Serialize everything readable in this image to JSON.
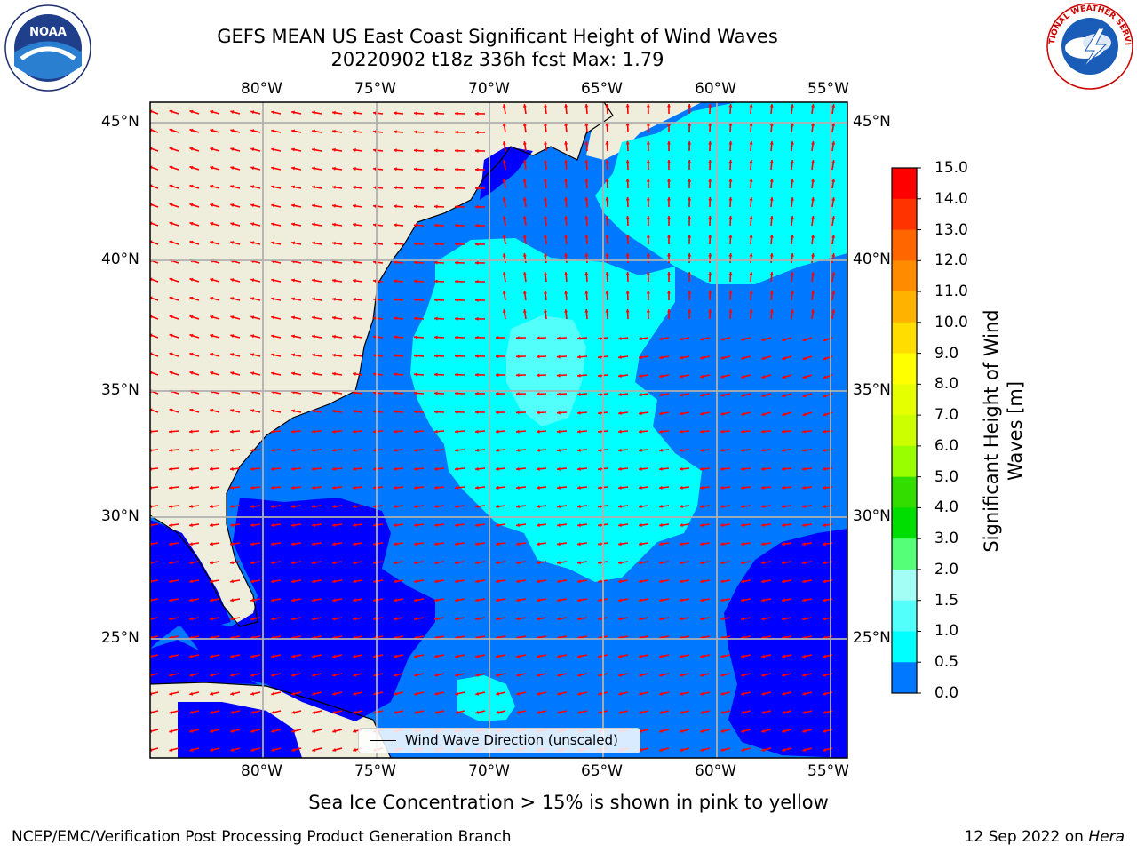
{
  "header": {
    "title_line1": "GEFS MEAN US East Coast Significant Height of Wind Waves",
    "title_line2": "20220902 t18z 336h fcst   Max: 1.79"
  },
  "logos": {
    "left": {
      "name": "noaa-logo",
      "text": "NOAA"
    },
    "right": {
      "name": "nws-logo",
      "text": "NATIONAL WEATHER SERVICE"
    }
  },
  "map": {
    "lon_labels": [
      "80°W",
      "75°W",
      "70°W",
      "65°W",
      "60°W",
      "55°W"
    ],
    "lat_labels": [
      "45°N",
      "40°N",
      "35°N",
      "30°N",
      "25°N"
    ],
    "colors": {
      "land": "#efeedc",
      "ocean_0": "#0000ff",
      "ocean_05": "#0078ff",
      "ocean_1": "#00ffff",
      "ocean_15": "#52fffb",
      "ocean_2": "#a3fff6",
      "arrow": "#ff0000",
      "grid": "#b0b0b0"
    },
    "legend": {
      "label": "Wind Wave Direction (unscaled)"
    }
  },
  "colorbar": {
    "title_line1": "Significant Height of Wind",
    "title_line2": "Waves [m]",
    "ticks": [
      "15.0",
      "14.0",
      "13.0",
      "12.0",
      "11.0",
      "10.0",
      "9.0",
      "8.0",
      "7.0",
      "6.0",
      "5.0",
      "4.0",
      "3.0",
      "2.0",
      "1.5",
      "1.0",
      "0.5",
      "0.0"
    ],
    "colors": [
      "#ff0000",
      "#ff3300",
      "#ff6600",
      "#ff8c00",
      "#ffb300",
      "#ffdd00",
      "#ffff00",
      "#e6ff00",
      "#ccff00",
      "#99ff00",
      "#33dd00",
      "#00dd00",
      "#55ff77",
      "#a3fff6",
      "#52fffb",
      "#00ffff",
      "#0078ff",
      "#0000ff"
    ]
  },
  "subtitle": "Sea Ice Concentration > 15% is shown in pink to yellow",
  "footer": {
    "left": "NCEP/EMC/Verification Post Processing Product Generation Branch",
    "right_date": "12 Sep 2022 on ",
    "right_host": "Hera"
  }
}
